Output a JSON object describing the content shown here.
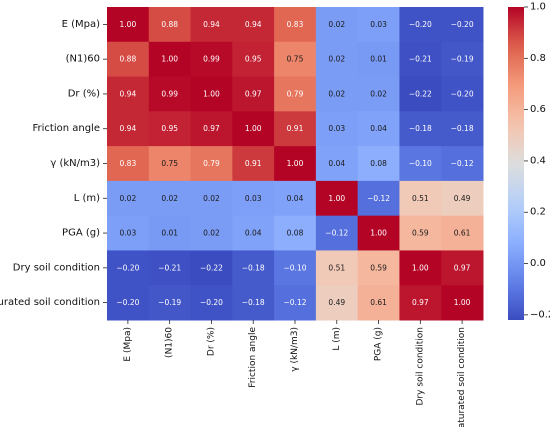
{
  "chart_data": {
    "type": "heatmap",
    "title": "",
    "row_labels": [
      "E (Mpa)",
      "(N1)60",
      "Dr (%)",
      "Friction angle",
      "γ (kN/m3)",
      "L (m)",
      "PGA (g)",
      "Dry soil condition",
      "Saturated soil condition"
    ],
    "col_labels": [
      "E (Mpa)",
      "(N1)60",
      "Dr (%)",
      "Friction angle",
      "γ (kN/m3)",
      "L (m)",
      "PGA (g)",
      "Dry soil condition",
      "Saturated soil condition"
    ],
    "values": [
      [
        1.0,
        0.88,
        0.94,
        0.94,
        0.83,
        0.02,
        0.03,
        -0.2,
        -0.2
      ],
      [
        0.88,
        1.0,
        0.99,
        0.95,
        0.75,
        0.02,
        0.01,
        -0.21,
        -0.19
      ],
      [
        0.94,
        0.99,
        1.0,
        0.97,
        0.79,
        0.02,
        0.02,
        -0.22,
        -0.2
      ],
      [
        0.94,
        0.95,
        0.97,
        1.0,
        0.91,
        0.03,
        0.04,
        -0.18,
        -0.18
      ],
      [
        0.83,
        0.75,
        0.79,
        0.91,
        1.0,
        0.04,
        0.08,
        -0.1,
        -0.12
      ],
      [
        0.02,
        0.02,
        0.02,
        0.03,
        0.04,
        1.0,
        -0.12,
        0.51,
        0.49
      ],
      [
        0.03,
        0.01,
        0.02,
        0.04,
        0.08,
        -0.12,
        1.0,
        0.59,
        0.61
      ],
      [
        -0.2,
        -0.21,
        -0.22,
        -0.18,
        -0.1,
        0.51,
        0.59,
        1.0,
        0.97
      ],
      [
        -0.2,
        -0.19,
        -0.2,
        -0.18,
        -0.12,
        0.49,
        0.61,
        0.97,
        1.0
      ]
    ],
    "colormap": "coolwarm",
    "vmin": -0.22,
    "vmax": 1.0,
    "colorbar_ticks": [
      -0.2,
      0.0,
      0.2,
      0.4,
      0.6,
      0.8,
      1.0
    ],
    "colorbar_tick_labels": [
      "−0.2",
      "0.0",
      "0.2",
      "0.4",
      "0.6",
      "0.8",
      "1.0"
    ],
    "annotations_format": "0.00",
    "colors": {
      "low": "#3b4cc0",
      "mid": "#dddddd",
      "high": "#b40426"
    }
  }
}
